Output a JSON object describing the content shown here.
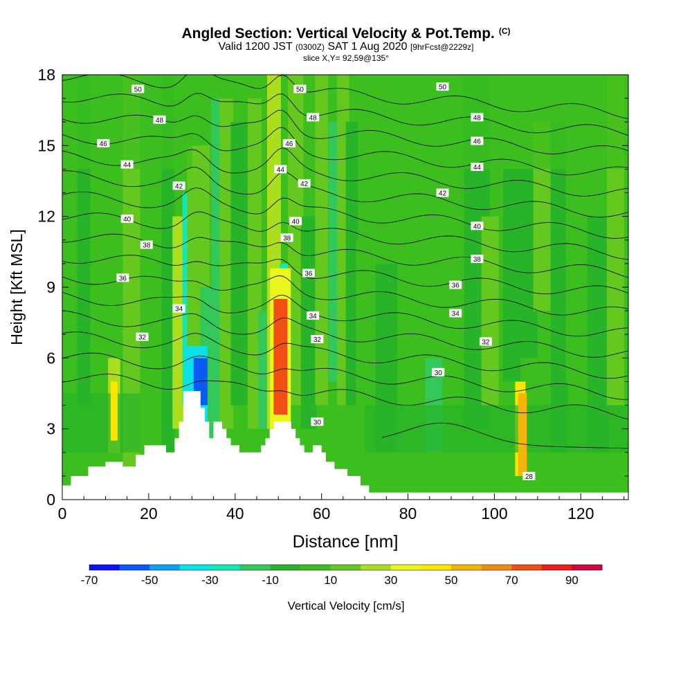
{
  "titles": {
    "main": "Angled Section: Vertical Velocity & Pot.Temp.",
    "copyright": "(C)",
    "valid_a": "Valid 1200 JST",
    "valid_b": "(0300Z)",
    "valid_c": "SAT 1 Aug 2020",
    "valid_d": "[9hrFcst@2229z]",
    "slice": "slice X,Y= 92,59@135°"
  },
  "chart_data": {
    "type": "heatmap",
    "xlabel": "Distance [nm]",
    "ylabel": "Height [Kft MSL]",
    "xlim": [
      0,
      131
    ],
    "ylim": [
      0,
      18
    ],
    "xticks": [
      0,
      20,
      40,
      60,
      80,
      100,
      120
    ],
    "yticks": [
      0,
      3,
      6,
      9,
      12,
      15,
      18
    ],
    "colorbar": {
      "label": "Vertical Velocity [cm/s]",
      "tick_labels": [
        "-70",
        "-50",
        "-30",
        "-10",
        "10",
        "30",
        "50",
        "70",
        "90"
      ],
      "bounds": [
        -70,
        -60,
        -50,
        -40,
        -30,
        -20,
        -10,
        0,
        10,
        20,
        30,
        40,
        50,
        60,
        70,
        80,
        90,
        100
      ],
      "colors": [
        "#0a14f0",
        "#0a5af5",
        "#0aa0f5",
        "#0ae1eb",
        "#14e6b4",
        "#32c85a",
        "#28b428",
        "#3cbe1e",
        "#64c81e",
        "#aade1e",
        "#ebf51e",
        "#fae600",
        "#f5b40a",
        "#f08c14",
        "#f05014",
        "#e61e1e",
        "#c80a3c",
        "#961478",
        "#6e1496"
      ]
    },
    "terrain_profile": [
      [
        0,
        0.6
      ],
      [
        2,
        1.0
      ],
      [
        6,
        1.4
      ],
      [
        10,
        1.6
      ],
      [
        14,
        1.4
      ],
      [
        17,
        1.9
      ],
      [
        19,
        2.3
      ],
      [
        22,
        2.3
      ],
      [
        24,
        2.0
      ],
      [
        26,
        2.6
      ],
      [
        27,
        3.3
      ],
      [
        28,
        4.6
      ],
      [
        31,
        4.6
      ],
      [
        32,
        3.9
      ],
      [
        33,
        3.3
      ],
      [
        34,
        2.6
      ],
      [
        35,
        3.3
      ],
      [
        37,
        3.0
      ],
      [
        38,
        2.6
      ],
      [
        39,
        2.3
      ],
      [
        41,
        2.0
      ],
      [
        44,
        2.0
      ],
      [
        46,
        2.3
      ],
      [
        47,
        2.6
      ],
      [
        48,
        3.0
      ],
      [
        49,
        3.3
      ],
      [
        53,
        3.0
      ],
      [
        54,
        2.6
      ],
      [
        55,
        2.3
      ],
      [
        56,
        2.0
      ],
      [
        58,
        2.3
      ],
      [
        60,
        2.0
      ],
      [
        61,
        1.6
      ],
      [
        63,
        1.3
      ],
      [
        66,
        1.0
      ],
      [
        69,
        0.6
      ],
      [
        71,
        0.3
      ],
      [
        131,
        0.3
      ]
    ],
    "theta_contour_labels": [
      {
        "value": "50",
        "x": 17.5,
        "y": 17.4
      },
      {
        "value": "50",
        "x": 55,
        "y": 17.4
      },
      {
        "value": "50",
        "x": 88,
        "y": 17.5
      },
      {
        "value": "48",
        "x": 22.5,
        "y": 16.1
      },
      {
        "value": "48",
        "x": 58,
        "y": 16.2
      },
      {
        "value": "48",
        "x": 96,
        "y": 16.2
      },
      {
        "value": "46",
        "x": 9.5,
        "y": 15.1
      },
      {
        "value": "46",
        "x": 52.5,
        "y": 15.1
      },
      {
        "value": "46",
        "x": 96,
        "y": 15.2
      },
      {
        "value": "44",
        "x": 15,
        "y": 14.2
      },
      {
        "value": "44",
        "x": 50.5,
        "y": 14.0
      },
      {
        "value": "44",
        "x": 96,
        "y": 14.1
      },
      {
        "value": "42",
        "x": 27,
        "y": 13.3
      },
      {
        "value": "42",
        "x": 56,
        "y": 13.4
      },
      {
        "value": "42",
        "x": 88,
        "y": 13.0
      },
      {
        "value": "40",
        "x": 15,
        "y": 11.9
      },
      {
        "value": "40",
        "x": 54,
        "y": 11.8
      },
      {
        "value": "40",
        "x": 96,
        "y": 11.6
      },
      {
        "value": "38",
        "x": 19.5,
        "y": 10.8
      },
      {
        "value": "38",
        "x": 52,
        "y": 11.1
      },
      {
        "value": "38",
        "x": 96,
        "y": 10.2
      },
      {
        "value": "36",
        "x": 14,
        "y": 9.4
      },
      {
        "value": "36",
        "x": 57,
        "y": 9.6
      },
      {
        "value": "36",
        "x": 91,
        "y": 9.1
      },
      {
        "value": "34",
        "x": 27,
        "y": 8.1
      },
      {
        "value": "34",
        "x": 58,
        "y": 7.8
      },
      {
        "value": "34",
        "x": 91,
        "y": 7.9
      },
      {
        "value": "32",
        "x": 18.5,
        "y": 6.9
      },
      {
        "value": "32",
        "x": 59,
        "y": 6.8
      },
      {
        "value": "32",
        "x": 98,
        "y": 6.7
      },
      {
        "value": "30",
        "x": 87,
        "y": 5.4
      },
      {
        "value": "30",
        "x": 59,
        "y": 3.3
      },
      {
        "value": "28",
        "x": 108,
        "y": 1.0
      }
    ],
    "vertical_velocity_features": [
      {
        "x": 50.5,
        "half_width": 1.6,
        "z_bottom": 3.6,
        "z_top": 8.5,
        "w": 75
      },
      {
        "x": 50.5,
        "half_width": 2.4,
        "z_bottom": 3.0,
        "z_top": 9.8,
        "w": 30
      },
      {
        "x": 31,
        "half_width": 2.6,
        "z_bottom": 3.0,
        "z_top": 6.5,
        "w": -35
      },
      {
        "x": 32,
        "half_width": 1.6,
        "z_bottom": 4.0,
        "z_top": 6.0,
        "w": -55
      },
      {
        "x": 106.5,
        "half_width": 1.0,
        "z_bottom": 1.0,
        "z_top": 4.5,
        "w": 50
      },
      {
        "x": 12,
        "half_width": 0.8,
        "z_bottom": 2.5,
        "z_top": 5.0,
        "w": 40
      }
    ]
  }
}
